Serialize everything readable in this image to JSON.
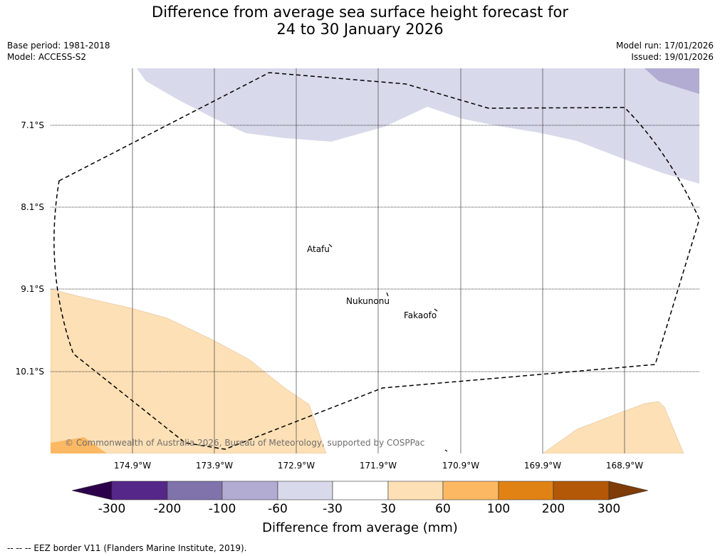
{
  "title": {
    "line1": "Difference from average sea surface height forecast for",
    "line2": "24 to 30 January 2026"
  },
  "meta": {
    "base_period": "Base period: 1981-2018",
    "model": "Model: ACCESS-S2",
    "model_run": "Model run: 17/01/2026",
    "issued": "Issued: 19/01/2026"
  },
  "latitudes": [
    "7.1°S",
    "8.1°S",
    "9.1°S",
    "10.1°S"
  ],
  "longitudes": [
    "174.9°W",
    "173.9°W",
    "172.9°W",
    "171.9°W",
    "170.9°W",
    "169.9°W",
    "168.9°W"
  ],
  "places": [
    "Atafu",
    "Nukunonu",
    "Fakaofo"
  ],
  "copyright": "© Commonwealth of Australia 2026, Bureau of Meteorology, supported by COSPPac",
  "colorbar": {
    "title": "Difference from average (mm)",
    "ticks": [
      "-300",
      "-200",
      "-100",
      "-60",
      "-30",
      "30",
      "60",
      "100",
      "200",
      "300"
    ],
    "colors": [
      "#2d004b",
      "#542788",
      "#8073ac",
      "#b2abd2",
      "#d8daeb",
      "#ffffff",
      "#fee0b6",
      "#fdb863",
      "#e08214",
      "#b35806",
      "#7f3b08"
    ]
  },
  "footnote": "-- -- -- EEZ border V11 (Flanders Marine Institute, 2019).",
  "colors": {
    "neg_light": "#d8daeb",
    "neg_mid": "#b2abd2",
    "pos_light": "#fee0b6",
    "pos_mid": "#fdb863"
  }
}
